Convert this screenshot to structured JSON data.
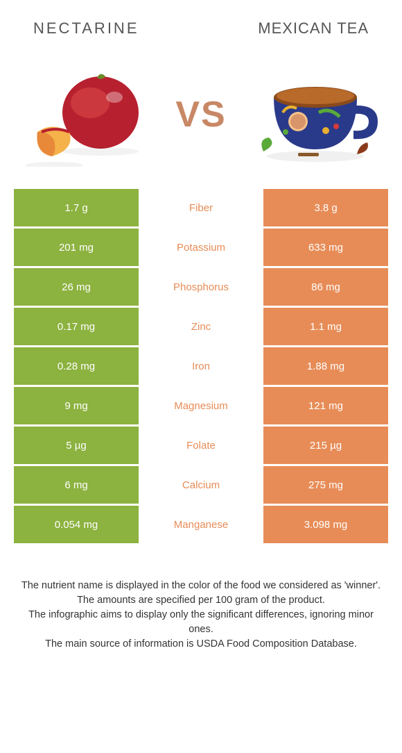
{
  "header": {
    "left_title": "NECTARINE",
    "right_title": "Mexican Tea"
  },
  "vs_label": "VS",
  "colors": {
    "left_bg": "#8cb23f",
    "right_bg": "#e78c57",
    "winner_text": "#e78c57",
    "vs_text": "#c88866"
  },
  "rows": [
    {
      "left": "1.7 g",
      "label": "Fiber",
      "right": "3.8 g"
    },
    {
      "left": "201 mg",
      "label": "Potassium",
      "right": "633 mg"
    },
    {
      "left": "26 mg",
      "label": "Phosphorus",
      "right": "86 mg"
    },
    {
      "left": "0.17 mg",
      "label": "Zinc",
      "right": "1.1 mg"
    },
    {
      "left": "0.28 mg",
      "label": "Iron",
      "right": "1.88 mg"
    },
    {
      "left": "9 mg",
      "label": "Magnesium",
      "right": "121 mg"
    },
    {
      "left": "5 µg",
      "label": "Folate",
      "right": "215 µg"
    },
    {
      "left": "6 mg",
      "label": "Calcium",
      "right": "275 mg"
    },
    {
      "left": "0.054 mg",
      "label": "Manganese",
      "right": "3.098 mg"
    }
  ],
  "footer": {
    "line1": "The nutrient name is displayed in the color of the food we considered as 'winner'.",
    "line2": "The amounts are specified per 100 gram of the product.",
    "line3": "The infographic aims to display only the significant differences, ignoring minor ones.",
    "line4": "The main source of information is USDA Food Composition Database."
  }
}
